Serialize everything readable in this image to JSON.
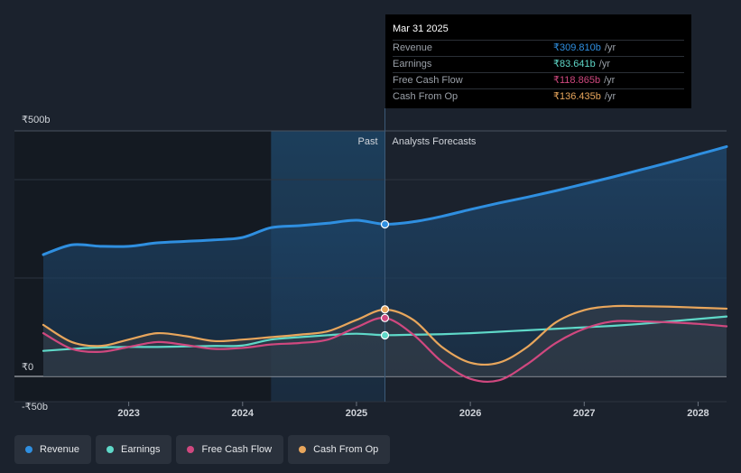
{
  "tooltip": {
    "date": "Mar 31 2025",
    "rows": [
      {
        "label": "Revenue",
        "value": "₹309.810b",
        "unit": "/yr",
        "color": "#2f8fe0"
      },
      {
        "label": "Earnings",
        "value": "₹83.641b",
        "unit": "/yr",
        "color": "#5fd8c8"
      },
      {
        "label": "Free Cash Flow",
        "value": "₹118.865b",
        "unit": "/yr",
        "color": "#d0487f"
      },
      {
        "label": "Cash From Op",
        "value": "₹136.435b",
        "unit": "/yr",
        "color": "#e8a65c"
      }
    ]
  },
  "legend": [
    {
      "label": "Revenue",
      "color": "#2f8fe0"
    },
    {
      "label": "Earnings",
      "color": "#5fd8c8"
    },
    {
      "label": "Free Cash Flow",
      "color": "#d0487f"
    },
    {
      "label": "Cash From Op",
      "color": "#e8a65c"
    }
  ],
  "chart_data": {
    "type": "line",
    "title": "",
    "xlabel": "",
    "ylabel": "",
    "ylim": [
      -50,
      500
    ],
    "xlim": [
      2022.25,
      2028.25
    ],
    "y_tick_labels": [
      {
        "value": 500,
        "label": "₹500b"
      },
      {
        "value": 0,
        "label": "₹0"
      },
      {
        "value": -50,
        "label": "-₹50b"
      }
    ],
    "x_tick_labels": [
      {
        "value": 2023,
        "label": "2023"
      },
      {
        "value": 2024,
        "label": "2024"
      },
      {
        "value": 2025,
        "label": "2025"
      },
      {
        "value": 2026,
        "label": "2026"
      },
      {
        "value": 2027,
        "label": "2027"
      },
      {
        "value": 2028,
        "label": "2028"
      }
    ],
    "divider_x": 2025.25,
    "highlight_start": 2024.25,
    "past_label": "Past",
    "forecast_label": "Analysts Forecasts",
    "series": [
      {
        "name": "Revenue",
        "color": "#2f8fe0",
        "x": [
          2022.25,
          2022.5,
          2022.75,
          2023.0,
          2023.25,
          2023.5,
          2023.75,
          2024.0,
          2024.25,
          2024.5,
          2024.75,
          2025.0,
          2025.25,
          2025.5,
          2025.75,
          2026.0,
          2026.25,
          2026.5,
          2026.75,
          2027.0,
          2027.25,
          2027.5,
          2027.75,
          2028.0,
          2028.25
        ],
        "values": [
          248,
          268,
          265,
          265,
          272,
          275,
          278,
          283,
          303,
          307,
          312,
          318,
          310,
          315,
          326,
          340,
          353,
          365,
          378,
          392,
          406,
          421,
          436,
          452,
          468
        ]
      },
      {
        "name": "Earnings",
        "color": "#5fd8c8",
        "x": [
          2022.25,
          2022.5,
          2022.75,
          2023.0,
          2023.25,
          2023.5,
          2023.75,
          2024.0,
          2024.25,
          2024.5,
          2024.75,
          2025.0,
          2025.25,
          2025.5,
          2025.75,
          2026.0,
          2026.25,
          2026.5,
          2026.75,
          2027.0,
          2027.25,
          2027.5,
          2027.75,
          2028.0,
          2028.25
        ],
        "values": [
          52,
          56,
          59,
          60,
          60,
          61,
          62,
          63,
          75,
          80,
          84,
          87,
          84,
          85,
          86,
          88,
          91,
          94,
          97,
          100,
          103,
          107,
          112,
          117,
          122
        ]
      },
      {
        "name": "Free Cash Flow",
        "color": "#d0487f",
        "x": [
          2022.25,
          2022.5,
          2022.75,
          2023.0,
          2023.25,
          2023.5,
          2023.75,
          2024.0,
          2024.25,
          2024.5,
          2024.75,
          2025.0,
          2025.25,
          2025.5,
          2025.75,
          2026.0,
          2026.25,
          2026.5,
          2026.75,
          2027.0,
          2027.25,
          2027.5,
          2027.75,
          2028.0,
          2028.25
        ],
        "values": [
          88,
          56,
          50,
          60,
          70,
          64,
          56,
          58,
          65,
          68,
          75,
          100,
          119,
          85,
          30,
          -5,
          -8,
          25,
          68,
          97,
          112,
          112,
          110,
          107,
          102
        ]
      },
      {
        "name": "Cash From Op",
        "color": "#e8a65c",
        "x": [
          2022.25,
          2022.5,
          2022.75,
          2023.0,
          2023.25,
          2023.5,
          2023.75,
          2024.0,
          2024.25,
          2024.5,
          2024.75,
          2025.0,
          2025.25,
          2025.5,
          2025.75,
          2026.0,
          2026.25,
          2026.5,
          2026.75,
          2027.0,
          2027.25,
          2027.5,
          2027.75,
          2028.0,
          2028.25
        ],
        "values": [
          105,
          70,
          62,
          75,
          88,
          82,
          72,
          75,
          80,
          85,
          92,
          115,
          136,
          115,
          60,
          28,
          28,
          60,
          110,
          135,
          143,
          143,
          142,
          140,
          138
        ]
      }
    ],
    "markers": [
      {
        "series": "Revenue",
        "x": 2025.25,
        "value": 309.81
      },
      {
        "series": "Earnings",
        "x": 2025.25,
        "value": 83.641
      },
      {
        "series": "Free Cash Flow",
        "x": 2025.25,
        "value": 118.865
      },
      {
        "series": "Cash From Op",
        "x": 2025.25,
        "value": 136.435
      }
    ]
  }
}
